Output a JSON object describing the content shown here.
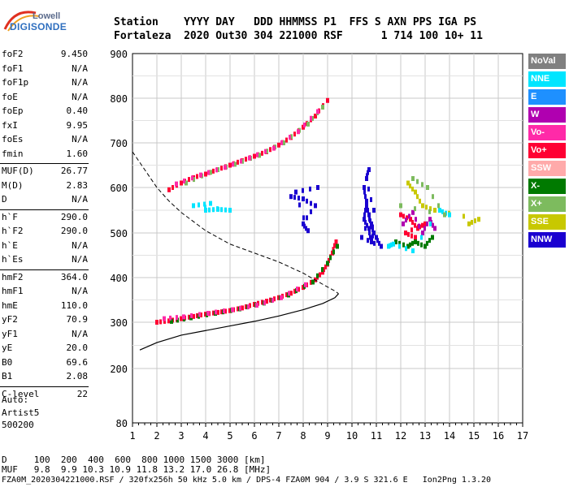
{
  "logo": {
    "line1": "Lowell",
    "line2": "DIGISONDE"
  },
  "header": {
    "row1": "Station    YYYY DAY   DDD HHMMSS P1  FFS S AXN PPS IGA PS",
    "row2": "Fortaleza  2020 Out30 304 221000 RSF      1 714 100 10+ 11"
  },
  "params": [
    {
      "key": "foF2",
      "value": "9.450"
    },
    {
      "key": "foF1",
      "value": "N/A"
    },
    {
      "key": "foF1p",
      "value": "N/A"
    },
    {
      "key": "foE",
      "value": "N/A"
    },
    {
      "key": "foEp",
      "value": "0.40"
    },
    {
      "key": "fxI",
      "value": "9.95"
    },
    {
      "key": "foEs",
      "value": "N/A"
    },
    {
      "key": "fmin",
      "value": "1.60"
    },
    {
      "key": "MUF(D)",
      "value": "26.77"
    },
    {
      "key": "M(D)",
      "value": "2.83"
    },
    {
      "key": "D",
      "value": "N/A"
    },
    {
      "key": "h`F",
      "value": "290.0"
    },
    {
      "key": "h`F2",
      "value": "290.0"
    },
    {
      "key": "h`E",
      "value": "N/A"
    },
    {
      "key": "h`Es",
      "value": "N/A"
    },
    {
      "key": "hmF2",
      "value": "364.0"
    },
    {
      "key": "hmF1",
      "value": "N/A"
    },
    {
      "key": "hmE",
      "value": "110.0"
    },
    {
      "key": "yF2",
      "value": "70.9"
    },
    {
      "key": "yF1",
      "value": "N/A"
    },
    {
      "key": "yE",
      "value": "20.0"
    },
    {
      "key": "B0",
      "value": "69.6"
    },
    {
      "key": "B1",
      "value": "2.08"
    },
    {
      "key": "C-level",
      "value": "22"
    }
  ],
  "auto": {
    "line1": "Auto:",
    "line2": "Artist5",
    "line3": "500200"
  },
  "legend": [
    {
      "label": "NoVal",
      "color": "#808080"
    },
    {
      "label": "NNE",
      "color": "#00e5ff"
    },
    {
      "label": "E",
      "color": "#1e90ff"
    },
    {
      "label": "W",
      "color": "#b000b0"
    },
    {
      "label": "Vo-",
      "color": "#ff2aa8"
    },
    {
      "label": "Vo+",
      "color": "#ff0033"
    },
    {
      "label": "SSW",
      "color": "#ffaaaa"
    },
    {
      "label": "X-",
      "color": "#007a00"
    },
    {
      "label": "X+",
      "color": "#7dbb5e"
    },
    {
      "label": "SSE",
      "color": "#c8c800"
    },
    {
      "label": "NNW",
      "color": "#1a00d0"
    }
  ],
  "bottom": {
    "row1": "D     100  200  400  600  800 1000 1500 3000 [km]",
    "row2": "MUF   9.8  9.9 10.3 10.9 11.8 13.2 17.0 26.8 [MHz]",
    "row3": "FZA0M_2020304221000.RSF / 320fx256h 50 kHz 5.0 km / DPS-4 FZA0M 904 / 3.9 S 321.6 E   Ion2Png 1.3.20"
  },
  "chart_data": {
    "type": "scatter",
    "xlim": [
      1,
      17
    ],
    "ylim": [
      80,
      900
    ],
    "x_ticks": [
      1,
      2,
      3,
      4,
      5,
      6,
      7,
      8,
      9,
      10,
      11,
      12,
      13,
      14,
      15,
      16,
      17
    ],
    "y_ticks": [
      80,
      200,
      300,
      400,
      500,
      600,
      700,
      800,
      900
    ],
    "grid": true,
    "profile": [
      [
        1.3,
        240
      ],
      [
        2,
        256
      ],
      [
        3,
        272
      ],
      [
        4,
        282
      ],
      [
        5,
        292
      ],
      [
        6,
        302
      ],
      [
        7,
        314
      ],
      [
        8,
        328
      ],
      [
        8.8,
        342
      ],
      [
        9.3,
        355
      ],
      [
        9.45,
        364
      ]
    ],
    "profile_dashed": [
      [
        1,
        680
      ],
      [
        1.5,
        640
      ],
      [
        2,
        600
      ],
      [
        2.5,
        570
      ],
      [
        3,
        545
      ],
      [
        4,
        505
      ],
      [
        5,
        475
      ],
      [
        6,
        455
      ],
      [
        7,
        435
      ],
      [
        8,
        410
      ],
      [
        8.8,
        385
      ],
      [
        9.3,
        370
      ],
      [
        9.45,
        364
      ]
    ],
    "traces": [
      {
        "series": "Vo+",
        "points": [
          [
            2,
            300
          ],
          [
            2.5,
            303
          ],
          [
            3,
            308
          ],
          [
            3.5,
            313
          ],
          [
            4,
            318
          ],
          [
            4.5,
            322
          ],
          [
            5,
            326
          ],
          [
            5.5,
            332
          ],
          [
            6,
            340
          ],
          [
            6.5,
            347
          ],
          [
            7,
            355
          ],
          [
            7.5,
            365
          ],
          [
            8,
            378
          ],
          [
            8.5,
            395
          ],
          [
            8.8,
            412
          ],
          [
            9.0,
            430
          ],
          [
            9.2,
            455
          ],
          [
            9.35,
            480
          ]
        ]
      },
      {
        "series": "X-",
        "points": [
          [
            2.6,
            302
          ],
          [
            3.4,
            310
          ],
          [
            4.4,
            320
          ],
          [
            5.4,
            330
          ],
          [
            6.4,
            343
          ],
          [
            7.4,
            361
          ],
          [
            8.4,
            390
          ],
          [
            9.0,
            432
          ],
          [
            9.4,
            470
          ]
        ]
      },
      {
        "series": "Vo-",
        "points": [
          [
            2.3,
            308
          ],
          [
            3.1,
            312
          ],
          [
            4.1,
            320
          ],
          [
            5.1,
            328
          ],
          [
            6.1,
            338
          ],
          [
            7.1,
            355
          ],
          [
            8.1,
            384
          ]
        ]
      },
      {
        "series": "Vo+",
        "points": [
          [
            2.5,
            595
          ],
          [
            3,
            610
          ],
          [
            3.5,
            622
          ],
          [
            4,
            630
          ],
          [
            4.5,
            640
          ],
          [
            5,
            650
          ],
          [
            5.5,
            660
          ],
          [
            6,
            670
          ],
          [
            6.5,
            680
          ],
          [
            7,
            695
          ],
          [
            7.5,
            712
          ],
          [
            8,
            735
          ],
          [
            8.5,
            760
          ],
          [
            9,
            795
          ]
        ]
      },
      {
        "series": "X+",
        "points": [
          [
            3.2,
            610
          ],
          [
            4.2,
            634
          ],
          [
            5.2,
            652
          ],
          [
            6.2,
            672
          ],
          [
            7.2,
            700
          ],
          [
            8.2,
            742
          ],
          [
            8.8,
            780
          ]
        ]
      },
      {
        "series": "Vo-",
        "points": [
          [
            2.8,
            608
          ],
          [
            3.8,
            628
          ],
          [
            4.8,
            645
          ],
          [
            5.8,
            666
          ],
          [
            6.8,
            688
          ],
          [
            7.8,
            725
          ],
          [
            8.6,
            770
          ]
        ]
      },
      {
        "series": "NNE",
        "points": [
          [
            4,
            550
          ],
          [
            4.5,
            552
          ],
          [
            5,
            550
          ],
          [
            3.5,
            560
          ],
          [
            4.2,
            565
          ]
        ]
      },
      {
        "series": "NNW",
        "points": [
          [
            7.5,
            580
          ],
          [
            8,
            575
          ],
          [
            8.5,
            560
          ],
          [
            8,
            520
          ],
          [
            8.2,
            505
          ],
          [
            7.7,
            590
          ],
          [
            8.6,
            600
          ]
        ]
      },
      {
        "series": "NNW",
        "points": [
          [
            10.5,
            600
          ],
          [
            10.6,
            570
          ],
          [
            10.7,
            540
          ],
          [
            10.8,
            520
          ],
          [
            10.9,
            500
          ],
          [
            10.8,
            480
          ],
          [
            10.7,
            510
          ],
          [
            10.5,
            530
          ],
          [
            10.6,
            560
          ],
          [
            11,
            490
          ],
          [
            11.2,
            470
          ],
          [
            10.4,
            490
          ],
          [
            10.9,
            550
          ],
          [
            10.6,
            620
          ],
          [
            10.7,
            640
          ]
        ]
      },
      {
        "series": "Vo+",
        "points": [
          [
            12,
            540
          ],
          [
            12.4,
            530
          ],
          [
            12.7,
            510
          ],
          [
            13,
            520
          ],
          [
            12.2,
            500
          ],
          [
            12.6,
            490
          ]
        ]
      },
      {
        "series": "W",
        "points": [
          [
            12.1,
            520
          ],
          [
            12.5,
            545
          ],
          [
            12.9,
            500
          ],
          [
            13.2,
            530
          ],
          [
            13.4,
            510
          ]
        ]
      },
      {
        "series": "X-",
        "points": [
          [
            11.8,
            480
          ],
          [
            12.3,
            470
          ],
          [
            12.6,
            480
          ],
          [
            13,
            470
          ],
          [
            13.3,
            490
          ]
        ]
      },
      {
        "series": "SSE",
        "points": [
          [
            12.3,
            610
          ],
          [
            12.6,
            590
          ],
          [
            12.9,
            560
          ],
          [
            13.4,
            550
          ],
          [
            15.2,
            530
          ],
          [
            14.8,
            520
          ]
        ]
      },
      {
        "series": "NNE",
        "points": [
          [
            11.5,
            470
          ],
          [
            11.7,
            475
          ],
          [
            12.5,
            460
          ],
          [
            13.6,
            550
          ],
          [
            14,
            540
          ]
        ]
      },
      {
        "series": "X+",
        "points": [
          [
            12.5,
            620
          ],
          [
            13.1,
            600
          ],
          [
            13.8,
            540
          ],
          [
            12,
            560
          ]
        ]
      }
    ]
  }
}
